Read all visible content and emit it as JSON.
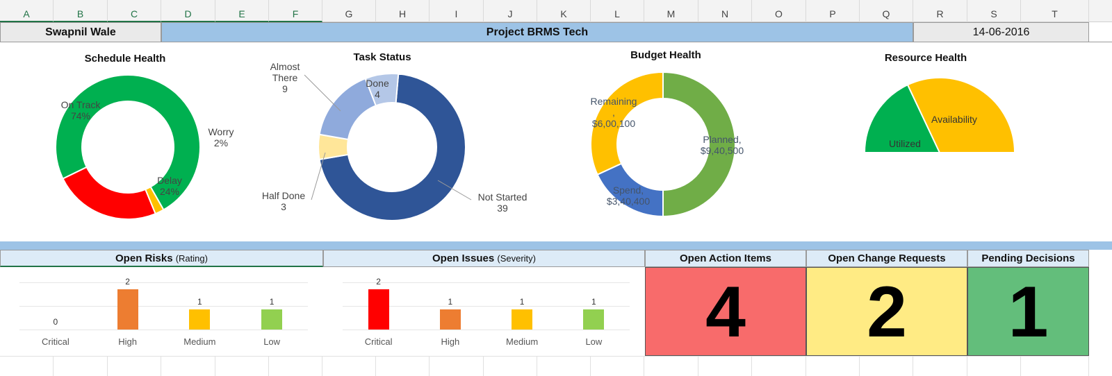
{
  "columns": [
    "A",
    "B",
    "C",
    "D",
    "E",
    "F",
    "G",
    "H",
    "I",
    "J",
    "K",
    "L",
    "M",
    "N",
    "O",
    "P",
    "Q",
    "R",
    "S",
    "T"
  ],
  "header": {
    "owner": "Swapnil Wale",
    "project": "Project BRMS Tech",
    "date": "14-06-2016"
  },
  "colors": {
    "header_blue": "#9dc3e6",
    "light_blue": "#ddebf7",
    "green": "#00b050",
    "red": "#ff0000",
    "yellow": "#ffc000",
    "action_red": "#f86b6b",
    "change_yellow": "#ffeb84",
    "decision_green": "#63be7b"
  },
  "schedule_health": {
    "title": "Schedule Health",
    "labels": {
      "on_track": "On Track\n74%",
      "worry": "Worry\n2%",
      "delay": "Delay\n24%"
    }
  },
  "task_status": {
    "title": "Task Status",
    "labels": {
      "almost": "Almost\nThere\n9",
      "done": "Done\n4",
      "half": "Half Done\n3",
      "not_started": "Not Started\n39"
    }
  },
  "budget_health": {
    "title": "Budget Health",
    "labels": {
      "remaining": "Remaining\n,\n$6,00,100",
      "planned": "Planned,\n$9,40,500",
      "spend": "Spend,\n$3,40,400"
    }
  },
  "resource_health": {
    "title": "Resource Health",
    "labels": {
      "availability": "Availability",
      "utilized": "Utilized"
    }
  },
  "sections": {
    "risks": {
      "title": "Open Risks",
      "sub": "(Rating)"
    },
    "issues": {
      "title": "Open Issues",
      "sub": "(Severity)"
    },
    "actions": {
      "title": "Open Action Items",
      "value": "4"
    },
    "changes": {
      "title": "Open Change Requests",
      "value": "2"
    },
    "decisions": {
      "title": "Pending Decisions",
      "value": "1"
    }
  },
  "chart_data": [
    {
      "type": "pie",
      "title": "Schedule Health",
      "categories": [
        "On Track",
        "Worry",
        "Delay"
      ],
      "values": [
        74,
        2,
        24
      ],
      "colors": [
        "#00b050",
        "#ffc000",
        "#ff0000"
      ]
    },
    {
      "type": "pie",
      "title": "Task Status",
      "categories": [
        "Not Started",
        "Half Done",
        "Almost There",
        "Done"
      ],
      "values": [
        39,
        3,
        9,
        4
      ],
      "colors": [
        "#2f5597",
        "#ffe699",
        "#8faadc",
        "#b4c7e7"
      ]
    },
    {
      "type": "pie",
      "title": "Budget Health",
      "categories": [
        "Planned",
        "Spend",
        "Remaining"
      ],
      "values": [
        940500,
        340400,
        600100
      ],
      "colors": [
        "#70ad47",
        "#4472c4",
        "#ffc000"
      ]
    },
    {
      "type": "pie",
      "title": "Resource Health",
      "categories": [
        "Utilized",
        "Availability"
      ],
      "values": [
        36,
        64
      ],
      "colors": [
        "#00b050",
        "#ffc000"
      ]
    },
    {
      "type": "bar",
      "title": "Open Risks (Rating)",
      "categories": [
        "Critical",
        "High",
        "Medium",
        "Low"
      ],
      "values": [
        0,
        2,
        1,
        1
      ],
      "colors": [
        "#ff0000",
        "#ed7d31",
        "#ffc000",
        "#92d050"
      ],
      "ylim": [
        0,
        2
      ]
    },
    {
      "type": "bar",
      "title": "Open Issues (Severity)",
      "categories": [
        "Critical",
        "High",
        "Medium",
        "Low"
      ],
      "values": [
        2,
        1,
        1,
        1
      ],
      "colors": [
        "#ff0000",
        "#ed7d31",
        "#ffc000",
        "#92d050"
      ],
      "ylim": [
        0,
        2
      ]
    }
  ]
}
